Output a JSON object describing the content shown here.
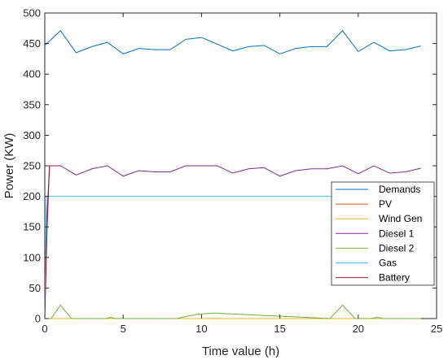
{
  "chart_data": {
    "type": "line",
    "title": "",
    "xlabel": "Time value (h)",
    "ylabel": "Power (KW)",
    "xlim": [
      0,
      25
    ],
    "ylim": [
      0,
      500
    ],
    "xticks": [
      0,
      5,
      10,
      15,
      20,
      25
    ],
    "yticks": [
      0,
      50,
      100,
      150,
      200,
      250,
      300,
      350,
      400,
      450,
      500
    ],
    "grid": false,
    "legend_position": "bottom-right",
    "series": [
      {
        "name": "Demands",
        "color": "#0072BD",
        "x": [
          0,
          1,
          2,
          3,
          4,
          5,
          6,
          7,
          8,
          9,
          10,
          11,
          12,
          13,
          14,
          15,
          16,
          17,
          18,
          19,
          20,
          21,
          22,
          23,
          24
        ],
        "y": [
          447,
          471,
          435,
          445,
          452,
          433,
          442,
          440,
          440,
          457,
          460,
          449,
          438,
          445,
          447,
          433,
          442,
          445,
          445,
          471,
          437,
          452,
          438,
          440,
          446
        ]
      },
      {
        "name": "PV",
        "color": "#D95319",
        "x": [
          0,
          24
        ],
        "y": [
          0,
          0
        ]
      },
      {
        "name": "Wind Gen",
        "color": "#EDB120",
        "x": [
          0,
          24
        ],
        "y": [
          0,
          0
        ]
      },
      {
        "name": "Diesel 1",
        "color": "#7E2F8E",
        "x": [
          0,
          0.1,
          0.3,
          1,
          2,
          3,
          4,
          5,
          6,
          7,
          8,
          9,
          10,
          11,
          12,
          13,
          14,
          15,
          16,
          17,
          18,
          19,
          20,
          21,
          22,
          23,
          24
        ],
        "y": [
          0,
          150,
          250,
          250,
          235,
          245,
          250,
          233,
          242,
          240,
          240,
          250,
          250,
          250,
          238,
          245,
          247,
          233,
          242,
          245,
          245,
          250,
          237,
          250,
          238,
          240,
          246
        ]
      },
      {
        "name": "Diesel 2",
        "color": "#77AC30",
        "x": [
          0,
          0.4,
          1,
          1.7,
          3.9,
          4.2,
          4.5,
          8.4,
          9.7,
          10.8,
          18.2,
          19,
          19.8,
          20.8,
          21.2,
          21.6,
          24
        ],
        "y": [
          0,
          0,
          22,
          0,
          0,
          2,
          0,
          0,
          7,
          9,
          0,
          22,
          0,
          0,
          2,
          0,
          0
        ]
      },
      {
        "name": "Gas",
        "color": "#4DBEEE",
        "x": [
          0,
          0.1,
          24
        ],
        "y": [
          0,
          200,
          200
        ]
      },
      {
        "name": "Battery",
        "color": "#A2142F",
        "x": [
          0,
          0.15,
          0.3,
          1
        ],
        "y": [
          0,
          150,
          250,
          250
        ]
      }
    ]
  }
}
